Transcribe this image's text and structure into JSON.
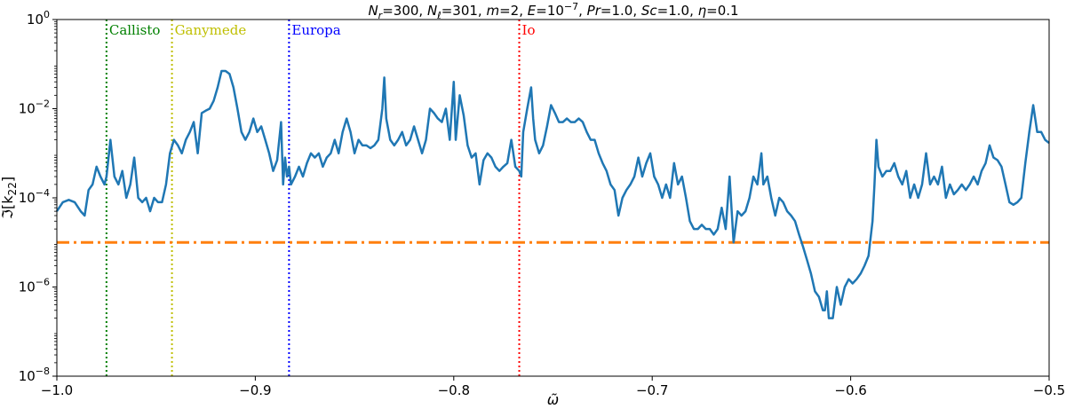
{
  "chart_data": {
    "type": "line",
    "title": "N_r=300,  N_ℓ=301,  m=2,  E=10^−7,  Pr=1.0,  Sc=1.0,  η=0.1",
    "title_parts": {
      "nr": "N",
      "nr_sub": "r",
      "nr_val": "=300,  ",
      "nl": "N",
      "nl_sub": "ℓ",
      "nl_val": "=301,  ",
      "m": "m",
      "m_val": "=2,  ",
      "e": "E",
      "e_val": "=10",
      "e_exp": "−7",
      "e_sep": ",  ",
      "pr": "Pr",
      "pr_val": "=1.0,  ",
      "sc": "Sc",
      "sc_val": "=1.0,  ",
      "eta": "η",
      "eta_val": "=0.1"
    },
    "xlabel": "ω̃",
    "ylabel": "ℑ[k",
    "ylabel_sub": "22",
    "ylabel_close": "]",
    "xlim": [
      -1.0,
      -0.5
    ],
    "ylim_log10": [
      -8,
      0
    ],
    "yscale": "log",
    "grid": false,
    "x_ticks": [
      -1.0,
      -0.9,
      -0.8,
      -0.7,
      -0.6,
      -0.5
    ],
    "x_tick_labels": [
      "−1.0",
      "−0.9",
      "−0.8",
      "−0.7",
      "−0.6",
      "−0.5"
    ],
    "y_ticks_log10": [
      -8,
      -6,
      -4,
      -2,
      0
    ],
    "y_tick_base": "10",
    "y_tick_exps": [
      "−8",
      "−6",
      "−4",
      "−2",
      "0"
    ],
    "colors": {
      "series": "#1f77b4",
      "threshold": "#ff7f0e",
      "callisto": "#008000",
      "ganymede": "#bfbf00",
      "europa": "#0000ff",
      "io": "#ff0000"
    },
    "threshold": {
      "value": 1e-05,
      "style": "dash-dot"
    },
    "moons": [
      {
        "name": "Callisto",
        "omega": -0.975,
        "color": "#008000"
      },
      {
        "name": "Ganymede",
        "omega": -0.942,
        "color": "#bfbf00"
      },
      {
        "name": "Europa",
        "omega": -0.883,
        "color": "#0000ff"
      },
      {
        "name": "Io",
        "omega": -0.767,
        "color": "#ff0000"
      }
    ],
    "series": [
      {
        "color": "#1f77b4",
        "points": [
          [
            -1.0,
            5e-05
          ],
          [
            -0.997,
            8e-05
          ],
          [
            -0.994,
            9e-05
          ],
          [
            -0.991,
            8e-05
          ],
          [
            -0.988,
            5e-05
          ],
          [
            -0.986,
            4e-05
          ],
          [
            -0.984,
            0.00015
          ],
          [
            -0.982,
            0.0002
          ],
          [
            -0.98,
            0.0005
          ],
          [
            -0.978,
            0.0003
          ],
          [
            -0.976,
            0.0002
          ],
          [
            -0.975,
            0.0003
          ],
          [
            -0.973,
            0.002
          ],
          [
            -0.971,
            0.0003
          ],
          [
            -0.969,
            0.0002
          ],
          [
            -0.967,
            0.0004
          ],
          [
            -0.965,
            0.0001
          ],
          [
            -0.963,
            0.0002
          ],
          [
            -0.961,
            0.0008
          ],
          [
            -0.959,
            0.0001
          ],
          [
            -0.957,
            8e-05
          ],
          [
            -0.955,
            0.0001
          ],
          [
            -0.953,
            5e-05
          ],
          [
            -0.951,
            0.0001
          ],
          [
            -0.949,
            8e-05
          ],
          [
            -0.947,
            8e-05
          ],
          [
            -0.945,
            0.0002
          ],
          [
            -0.943,
            0.001
          ],
          [
            -0.941,
            0.002
          ],
          [
            -0.939,
            0.0015
          ],
          [
            -0.937,
            0.001
          ],
          [
            -0.935,
            0.002
          ],
          [
            -0.933,
            0.003
          ],
          [
            -0.931,
            0.005
          ],
          [
            -0.929,
            0.001
          ],
          [
            -0.927,
            0.008
          ],
          [
            -0.925,
            0.009
          ],
          [
            -0.923,
            0.01
          ],
          [
            -0.921,
            0.015
          ],
          [
            -0.919,
            0.03
          ],
          [
            -0.917,
            0.07
          ],
          [
            -0.915,
            0.07
          ],
          [
            -0.913,
            0.06
          ],
          [
            -0.911,
            0.03
          ],
          [
            -0.909,
            0.01
          ],
          [
            -0.907,
            0.003
          ],
          [
            -0.905,
            0.002
          ],
          [
            -0.903,
            0.003
          ],
          [
            -0.901,
            0.006
          ],
          [
            -0.899,
            0.003
          ],
          [
            -0.897,
            0.004
          ],
          [
            -0.895,
            0.002
          ],
          [
            -0.893,
            0.001
          ],
          [
            -0.891,
            0.0004
          ],
          [
            -0.889,
            0.0007
          ],
          [
            -0.887,
            0.005
          ],
          [
            -0.886,
            0.0002
          ],
          [
            -0.885,
            0.0008
          ],
          [
            -0.884,
            0.0003
          ],
          [
            -0.883,
            0.0005
          ],
          [
            -0.882,
            0.0002
          ],
          [
            -0.88,
            0.0003
          ],
          [
            -0.878,
            0.0005
          ],
          [
            -0.876,
            0.0003
          ],
          [
            -0.874,
            0.0006
          ],
          [
            -0.872,
            0.001
          ],
          [
            -0.87,
            0.0008
          ],
          [
            -0.868,
            0.001
          ],
          [
            -0.866,
            0.0005
          ],
          [
            -0.864,
            0.0008
          ],
          [
            -0.862,
            0.001
          ],
          [
            -0.86,
            0.002
          ],
          [
            -0.858,
            0.001
          ],
          [
            -0.856,
            0.003
          ],
          [
            -0.854,
            0.006
          ],
          [
            -0.852,
            0.003
          ],
          [
            -0.85,
            0.001
          ],
          [
            -0.848,
            0.002
          ],
          [
            -0.846,
            0.0015
          ],
          [
            -0.844,
            0.0015
          ],
          [
            -0.842,
            0.0013
          ],
          [
            -0.84,
            0.0015
          ],
          [
            -0.838,
            0.002
          ],
          [
            -0.836,
            0.01
          ],
          [
            -0.835,
            0.05
          ],
          [
            -0.834,
            0.006
          ],
          [
            -0.832,
            0.002
          ],
          [
            -0.83,
            0.0015
          ],
          [
            -0.828,
            0.002
          ],
          [
            -0.826,
            0.003
          ],
          [
            -0.824,
            0.0015
          ],
          [
            -0.822,
            0.002
          ],
          [
            -0.82,
            0.004
          ],
          [
            -0.818,
            0.002
          ],
          [
            -0.816,
            0.001
          ],
          [
            -0.814,
            0.002
          ],
          [
            -0.812,
            0.01
          ],
          [
            -0.81,
            0.008
          ],
          [
            -0.808,
            0.006
          ],
          [
            -0.806,
            0.005
          ],
          [
            -0.804,
            0.01
          ],
          [
            -0.802,
            0.002
          ],
          [
            -0.8,
            0.04
          ],
          [
            -0.799,
            0.002
          ],
          [
            -0.797,
            0.02
          ],
          [
            -0.795,
            0.007
          ],
          [
            -0.793,
            0.0015
          ],
          [
            -0.791,
            0.0008
          ],
          [
            -0.789,
            0.001
          ],
          [
            -0.787,
            0.0002
          ],
          [
            -0.785,
            0.0007
          ],
          [
            -0.783,
            0.001
          ],
          [
            -0.781,
            0.0008
          ],
          [
            -0.779,
            0.0005
          ],
          [
            -0.777,
            0.0004
          ],
          [
            -0.775,
            0.0005
          ],
          [
            -0.773,
            0.0006
          ],
          [
            -0.771,
            0.002
          ],
          [
            -0.769,
            0.0005
          ],
          [
            -0.767,
            0.0004
          ],
          [
            -0.766,
            0.0003
          ],
          [
            -0.765,
            0.003
          ],
          [
            -0.763,
            0.01
          ],
          [
            -0.761,
            0.03
          ],
          [
            -0.76,
            0.006
          ],
          [
            -0.759,
            0.002
          ],
          [
            -0.757,
            0.001
          ],
          [
            -0.755,
            0.0015
          ],
          [
            -0.753,
            0.004
          ],
          [
            -0.751,
            0.012
          ],
          [
            -0.749,
            0.008
          ],
          [
            -0.747,
            0.005
          ],
          [
            -0.745,
            0.005
          ],
          [
            -0.743,
            0.006
          ],
          [
            -0.741,
            0.005
          ],
          [
            -0.739,
            0.005
          ],
          [
            -0.737,
            0.006
          ],
          [
            -0.735,
            0.005
          ],
          [
            -0.733,
            0.003
          ],
          [
            -0.731,
            0.002
          ],
          [
            -0.729,
            0.002
          ],
          [
            -0.727,
            0.001
          ],
          [
            -0.725,
            0.0006
          ],
          [
            -0.723,
            0.0004
          ],
          [
            -0.721,
            0.0002
          ],
          [
            -0.719,
            0.00015
          ],
          [
            -0.717,
            4e-05
          ],
          [
            -0.715,
            0.0001
          ],
          [
            -0.713,
            0.00015
          ],
          [
            -0.711,
            0.0002
          ],
          [
            -0.709,
            0.0003
          ],
          [
            -0.707,
            0.0008
          ],
          [
            -0.705,
            0.0003
          ],
          [
            -0.703,
            0.0006
          ],
          [
            -0.701,
            0.001
          ],
          [
            -0.699,
            0.0003
          ],
          [
            -0.697,
            0.0002
          ],
          [
            -0.695,
            0.0001
          ],
          [
            -0.693,
            0.0002
          ],
          [
            -0.691,
            0.0001
          ],
          [
            -0.689,
            0.0006
          ],
          [
            -0.687,
            0.0002
          ],
          [
            -0.685,
            0.0003
          ],
          [
            -0.683,
            0.0001
          ],
          [
            -0.681,
            3e-05
          ],
          [
            -0.679,
            2e-05
          ],
          [
            -0.677,
            2e-05
          ],
          [
            -0.675,
            2.5e-05
          ],
          [
            -0.673,
            2e-05
          ],
          [
            -0.671,
            2e-05
          ],
          [
            -0.669,
            1.5e-05
          ],
          [
            -0.667,
            2e-05
          ],
          [
            -0.665,
            6e-05
          ],
          [
            -0.663,
            2e-05
          ],
          [
            -0.661,
            0.0003
          ],
          [
            -0.659,
            1e-05
          ],
          [
            -0.657,
            5e-05
          ],
          [
            -0.655,
            4e-05
          ],
          [
            -0.653,
            5e-05
          ],
          [
            -0.651,
            0.0001
          ],
          [
            -0.649,
            0.0003
          ],
          [
            -0.647,
            0.0002
          ],
          [
            -0.645,
            0.001
          ],
          [
            -0.644,
            0.0002
          ],
          [
            -0.642,
            0.0003
          ],
          [
            -0.64,
            0.0001
          ],
          [
            -0.638,
            4e-05
          ],
          [
            -0.636,
            0.0001
          ],
          [
            -0.634,
            8e-05
          ],
          [
            -0.632,
            5e-05
          ],
          [
            -0.63,
            4e-05
          ],
          [
            -0.628,
            3e-05
          ],
          [
            -0.626,
            1.5e-05
          ],
          [
            -0.624,
            8e-06
          ],
          [
            -0.622,
            4e-06
          ],
          [
            -0.62,
            2e-06
          ],
          [
            -0.618,
            8e-07
          ],
          [
            -0.616,
            6e-07
          ],
          [
            -0.614,
            3e-07
          ],
          [
            -0.613,
            3e-07
          ],
          [
            -0.612,
            8e-07
          ],
          [
            -0.611,
            2e-07
          ],
          [
            -0.609,
            2e-07
          ],
          [
            -0.607,
            1e-06
          ],
          [
            -0.605,
            4e-07
          ],
          [
            -0.603,
            1e-06
          ],
          [
            -0.601,
            1.5e-06
          ],
          [
            -0.599,
            1.2e-06
          ],
          [
            -0.597,
            1.5e-06
          ],
          [
            -0.595,
            2e-06
          ],
          [
            -0.593,
            3e-06
          ],
          [
            -0.591,
            5e-06
          ],
          [
            -0.589,
            3e-05
          ],
          [
            -0.588,
            0.0002
          ],
          [
            -0.587,
            0.002
          ],
          [
            -0.586,
            0.0005
          ],
          [
            -0.584,
            0.0003
          ],
          [
            -0.582,
            0.0004
          ],
          [
            -0.58,
            0.0004
          ],
          [
            -0.578,
            0.0006
          ],
          [
            -0.576,
            0.0003
          ],
          [
            -0.574,
            0.0002
          ],
          [
            -0.572,
            0.0004
          ],
          [
            -0.57,
            0.0001
          ],
          [
            -0.568,
            0.0002
          ],
          [
            -0.566,
            0.0001
          ],
          [
            -0.564,
            0.0002
          ],
          [
            -0.562,
            0.001
          ],
          [
            -0.56,
            0.0002
          ],
          [
            -0.558,
            0.0003
          ],
          [
            -0.556,
            0.0002
          ],
          [
            -0.554,
            0.0005
          ],
          [
            -0.552,
            0.0001
          ],
          [
            -0.55,
            0.0002
          ],
          [
            -0.548,
            0.00012
          ],
          [
            -0.546,
            0.00015
          ],
          [
            -0.544,
            0.0002
          ],
          [
            -0.542,
            0.00015
          ],
          [
            -0.54,
            0.0002
          ],
          [
            -0.538,
            0.0003
          ],
          [
            -0.536,
            0.0002
          ],
          [
            -0.534,
            0.0004
          ],
          [
            -0.532,
            0.0006
          ],
          [
            -0.53,
            0.0015
          ],
          [
            -0.528,
            0.0008
          ],
          [
            -0.526,
            0.0007
          ],
          [
            -0.524,
            0.0005
          ],
          [
            -0.522,
            0.0002
          ],
          [
            -0.52,
            8e-05
          ],
          [
            -0.518,
            7e-05
          ],
          [
            -0.516,
            8e-05
          ],
          [
            -0.514,
            0.0001
          ],
          [
            -0.512,
            0.0006
          ],
          [
            -0.51,
            0.003
          ],
          [
            -0.508,
            0.012
          ],
          [
            -0.506,
            0.003
          ],
          [
            -0.504,
            0.003
          ],
          [
            -0.502,
            0.002
          ],
          [
            -0.5,
            0.0017
          ]
        ]
      }
    ]
  }
}
